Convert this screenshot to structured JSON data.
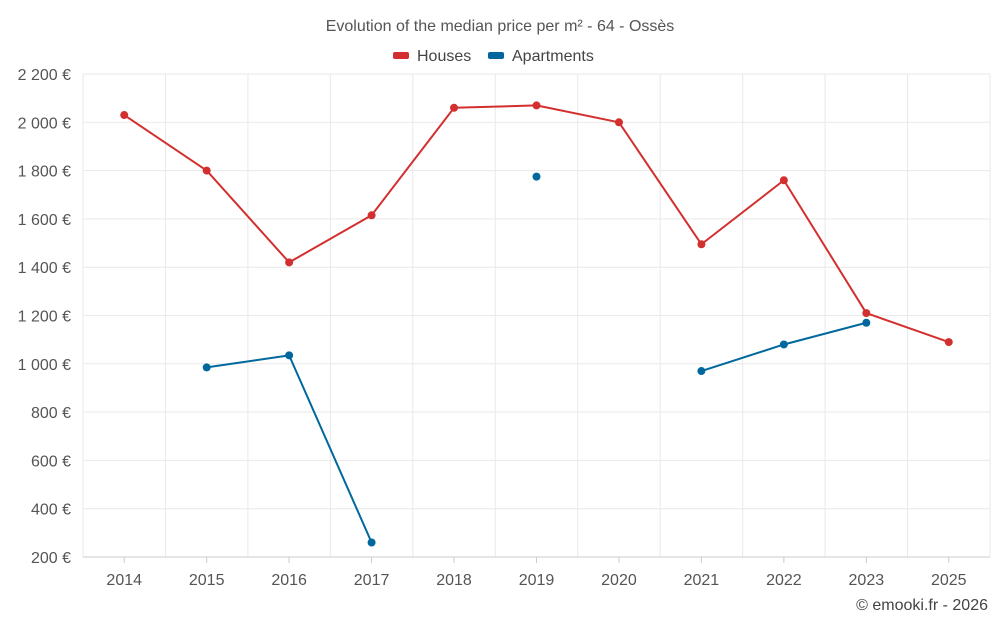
{
  "chart_data": {
    "type": "line",
    "title": "Evolution of the median price per m² - 64 - Ossès",
    "categories": [
      "2014",
      "2015",
      "2016",
      "2017",
      "2018",
      "2019",
      "2020",
      "2021",
      "2022",
      "2023",
      "2025"
    ],
    "y_ticks": [
      "200 €",
      "400 €",
      "600 €",
      "800 €",
      "1 000 €",
      "1 200 €",
      "1 400 €",
      "1 600 €",
      "1 800 €",
      "2 000 €",
      "2 200 €"
    ],
    "ylim": [
      200,
      2200
    ],
    "grid": true,
    "legend_position": "top-center",
    "series": [
      {
        "name": "Houses",
        "color": "#d32f2f",
        "values": [
          2030,
          1800,
          1420,
          1615,
          2060,
          2070,
          2000,
          1495,
          1760,
          1210,
          1090
        ]
      },
      {
        "name": "Apartments",
        "color": "#00689d",
        "values": [
          null,
          985,
          1035,
          260,
          null,
          1775,
          null,
          970,
          1080,
          1170,
          null
        ]
      }
    ]
  },
  "credit": "© emooki.fr - 2026"
}
